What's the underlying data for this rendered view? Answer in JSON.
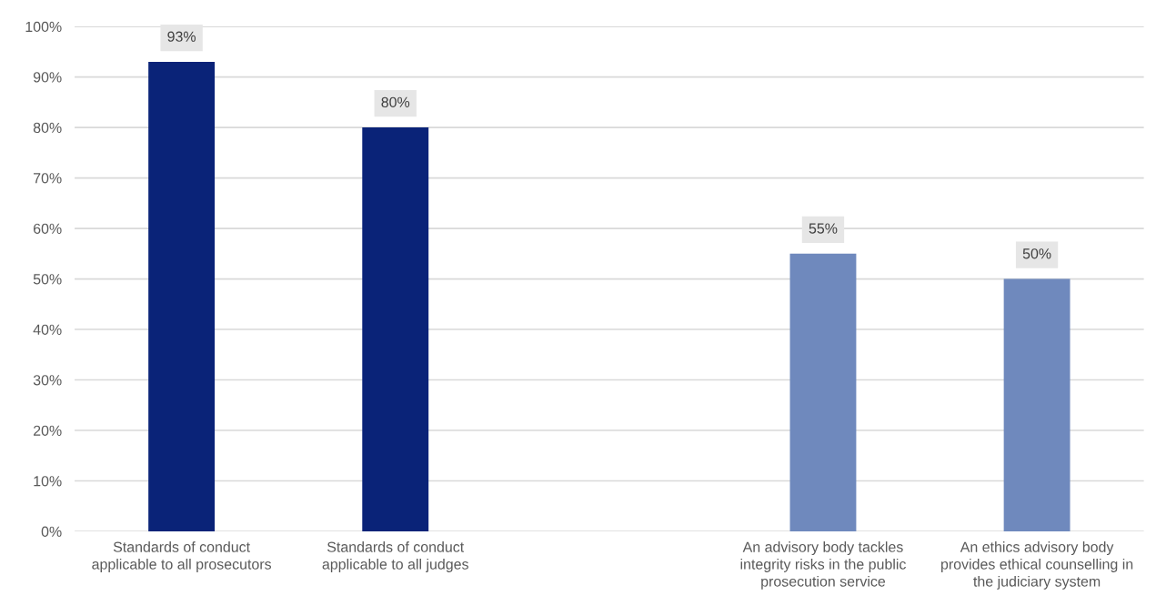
{
  "chart_data": {
    "type": "bar",
    "categories": [
      "Standards of conduct\napplicable to all prosecutors",
      "Standards of conduct\napplicable to all judges",
      null,
      "An advisory body tackles\nintegrity risks in the public\nprosecution service",
      "An ethics advisory body\nprovides ethical counselling in\nthe judiciary system"
    ],
    "values": [
      93,
      80,
      null,
      55,
      50
    ],
    "colors": [
      "#0a2378",
      "#0a2378",
      null,
      "#6f89bd",
      "#6f89bd"
    ],
    "value_labels": [
      "93%",
      "80%",
      null,
      "55%",
      "50%"
    ],
    "ylim": [
      0,
      100
    ],
    "yticks": [
      {
        "value": 0,
        "label": "0%"
      },
      {
        "value": 10,
        "label": "10%"
      },
      {
        "value": 20,
        "label": "20%"
      },
      {
        "value": 30,
        "label": "30%"
      },
      {
        "value": 40,
        "label": "40%"
      },
      {
        "value": 50,
        "label": "50%"
      },
      {
        "value": 60,
        "label": "60%"
      },
      {
        "value": 70,
        "label": "70%"
      },
      {
        "value": 80,
        "label": "80%"
      },
      {
        "value": 90,
        "label": "90%"
      },
      {
        "value": 100,
        "label": "100%"
      }
    ],
    "grid": "y",
    "legend": false
  }
}
